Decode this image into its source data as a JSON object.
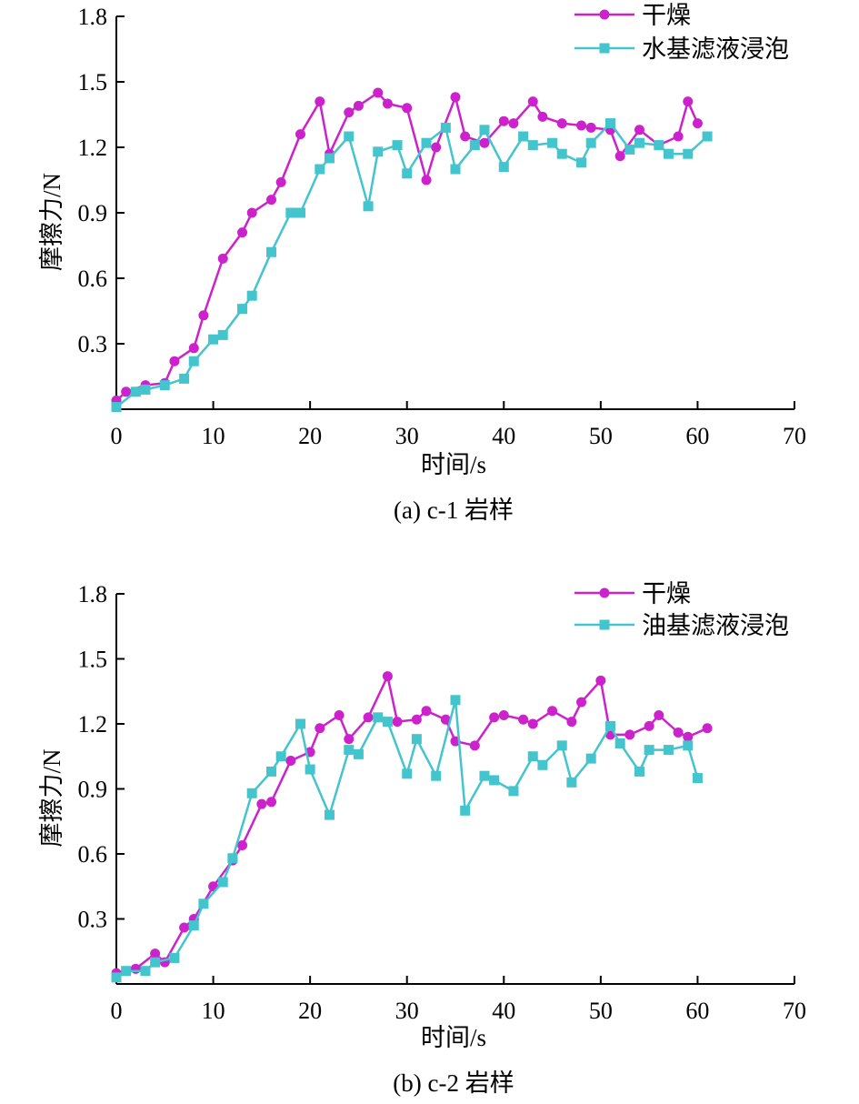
{
  "chart_data": [
    {
      "type": "line",
      "caption": "(a) c-1 岩样",
      "xlabel": "时间/s",
      "ylabel": "摩擦力/N",
      "xlim": [
        0,
        70
      ],
      "ylim": [
        0,
        1.8
      ],
      "xticks": [
        "0",
        "10",
        "20",
        "30",
        "40",
        "50",
        "60",
        "70"
      ],
      "yticks": [
        "0.3",
        "0.6",
        "0.9",
        "1.2",
        "1.5",
        "1.8"
      ],
      "legend_position": "top-right",
      "series": [
        {
          "name": "干燥",
          "color": "#cc22cc",
          "marker": "circle",
          "x": [
            0,
            1,
            3,
            5,
            6,
            8,
            9,
            11,
            13,
            14,
            16,
            17,
            19,
            21,
            22,
            24,
            25,
            27,
            28,
            30,
            32,
            33,
            35,
            36,
            38,
            40,
            41,
            43,
            44,
            46,
            48,
            49,
            51,
            52,
            54,
            56,
            58,
            59,
            60
          ],
          "y": [
            0.04,
            0.08,
            0.11,
            0.12,
            0.22,
            0.28,
            0.43,
            0.69,
            0.81,
            0.9,
            0.96,
            1.04,
            1.26,
            1.41,
            1.17,
            1.36,
            1.39,
            1.45,
            1.4,
            1.38,
            1.05,
            1.2,
            1.43,
            1.25,
            1.22,
            1.32,
            1.31,
            1.41,
            1.34,
            1.31,
            1.3,
            1.29,
            1.28,
            1.16,
            1.28,
            1.21,
            1.25,
            1.41,
            1.31
          ]
        },
        {
          "name": "水基滤液浸泡",
          "color": "#44c4cc",
          "marker": "square",
          "x": [
            0,
            2,
            3,
            5,
            7,
            8,
            10,
            11,
            13,
            14,
            16,
            18,
            19,
            21,
            22,
            24,
            26,
            27,
            29,
            30,
            32,
            34,
            35,
            37,
            38,
            40,
            42,
            43,
            45,
            46,
            48,
            49,
            51,
            53,
            54,
            56,
            57,
            59,
            61
          ],
          "y": [
            0.01,
            0.08,
            0.09,
            0.11,
            0.14,
            0.22,
            0.32,
            0.34,
            0.46,
            0.52,
            0.72,
            0.9,
            0.9,
            1.1,
            1.15,
            1.25,
            0.93,
            1.18,
            1.21,
            1.08,
            1.22,
            1.29,
            1.1,
            1.21,
            1.28,
            1.11,
            1.25,
            1.21,
            1.22,
            1.17,
            1.13,
            1.22,
            1.31,
            1.19,
            1.22,
            1.21,
            1.17,
            1.17,
            1.25
          ]
        }
      ]
    },
    {
      "type": "line",
      "caption": "(b) c-2 岩样",
      "xlabel": "时间/s",
      "ylabel": "摩擦力/N",
      "xlim": [
        0,
        70
      ],
      "ylim": [
        0,
        1.8
      ],
      "xticks": [
        "0",
        "10",
        "20",
        "30",
        "40",
        "50",
        "60",
        "70"
      ],
      "yticks": [
        "0.3",
        "0.6",
        "0.9",
        "1.2",
        "1.5",
        "1.8"
      ],
      "legend_position": "top-right",
      "series": [
        {
          "name": "干燥",
          "color": "#cc22cc",
          "marker": "circle",
          "x": [
            0,
            2,
            4,
            5,
            7,
            8,
            10,
            12,
            13,
            15,
            16,
            18,
            20,
            21,
            23,
            24,
            26,
            28,
            29,
            31,
            32,
            34,
            35,
            37,
            39,
            40,
            42,
            43,
            45,
            47,
            48,
            50,
            51,
            53,
            55,
            56,
            58,
            59,
            61
          ],
          "y": [
            0.05,
            0.07,
            0.14,
            0.1,
            0.26,
            0.3,
            0.45,
            0.57,
            0.64,
            0.83,
            0.84,
            1.03,
            1.07,
            1.18,
            1.24,
            1.13,
            1.23,
            1.42,
            1.21,
            1.22,
            1.26,
            1.22,
            1.12,
            1.1,
            1.23,
            1.24,
            1.22,
            1.2,
            1.26,
            1.21,
            1.3,
            1.4,
            1.15,
            1.15,
            1.19,
            1.24,
            1.16,
            1.14,
            1.18
          ]
        },
        {
          "name": "油基滤液浸泡",
          "color": "#44c4cc",
          "marker": "square",
          "x": [
            0,
            1,
            3,
            4,
            6,
            8,
            9,
            11,
            12,
            14,
            16,
            17,
            19,
            20,
            22,
            24,
            25,
            27,
            28,
            30,
            31,
            33,
            35,
            36,
            38,
            39,
            41,
            43,
            44,
            46,
            47,
            49,
            51,
            52,
            54,
            55,
            57,
            59,
            60
          ],
          "y": [
            0.03,
            0.06,
            0.06,
            0.1,
            0.12,
            0.27,
            0.37,
            0.47,
            0.58,
            0.88,
            0.98,
            1.05,
            1.2,
            0.99,
            0.78,
            1.08,
            1.06,
            1.23,
            1.21,
            0.97,
            1.13,
            0.96,
            1.31,
            0.8,
            0.96,
            0.94,
            0.89,
            1.05,
            1.01,
            1.1,
            0.93,
            1.04,
            1.19,
            1.11,
            0.98,
            1.08,
            1.08,
            1.1,
            0.95
          ]
        }
      ]
    }
  ]
}
